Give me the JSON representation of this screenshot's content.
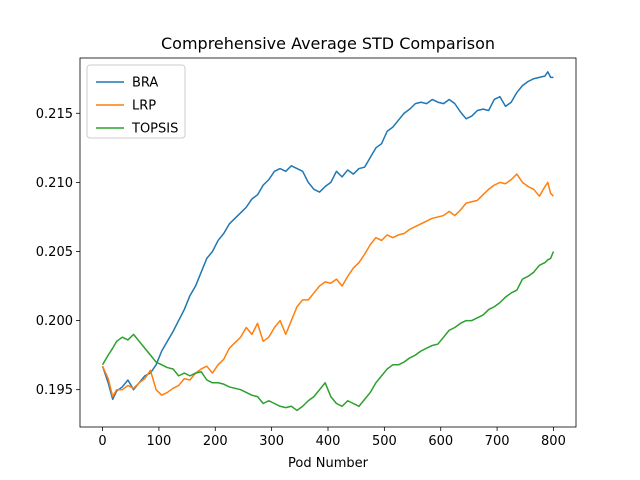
{
  "chart_data": {
    "type": "line",
    "title": "Comprehensive Average STD Comparison",
    "xlabel": "Pod Number",
    "ylabel": "",
    "xlim": [
      -40,
      840
    ],
    "ylim": [
      0.1923,
      0.219
    ],
    "xticks": [
      0,
      100,
      200,
      300,
      400,
      500,
      600,
      700,
      800
    ],
    "xtick_labels": [
      "0",
      "100",
      "200",
      "300",
      "400",
      "500",
      "600",
      "700",
      "800"
    ],
    "yticks": [
      0.195,
      0.2,
      0.205,
      0.21,
      0.215
    ],
    "ytick_labels": [
      "0.195",
      "0.200",
      "0.205",
      "0.210",
      "0.215"
    ],
    "grid": false,
    "legend_position": "top-left",
    "series": [
      {
        "name": "BRA",
        "color": "#1f77b4",
        "x": [
          0,
          10,
          18,
          25,
          35,
          45,
          55,
          65,
          75,
          85,
          95,
          105,
          115,
          125,
          135,
          145,
          155,
          165,
          175,
          185,
          195,
          205,
          215,
          225,
          235,
          245,
          255,
          265,
          275,
          285,
          295,
          305,
          315,
          325,
          335,
          345,
          355,
          365,
          375,
          385,
          395,
          405,
          415,
          425,
          435,
          445,
          455,
          465,
          475,
          485,
          495,
          505,
          515,
          525,
          535,
          545,
          555,
          565,
          575,
          585,
          595,
          605,
          615,
          625,
          635,
          645,
          655,
          665,
          675,
          685,
          695,
          705,
          715,
          725,
          735,
          745,
          755,
          765,
          775,
          785,
          790,
          795,
          800
        ],
        "values": [
          0.1967,
          0.1955,
          0.1943,
          0.1949,
          0.1952,
          0.1957,
          0.195,
          0.1955,
          0.196,
          0.1962,
          0.1968,
          0.1978,
          0.1985,
          0.1992,
          0.2,
          0.2008,
          0.2018,
          0.2025,
          0.2035,
          0.2045,
          0.205,
          0.2058,
          0.2063,
          0.207,
          0.2074,
          0.2078,
          0.2082,
          0.2088,
          0.2091,
          0.2098,
          0.2102,
          0.2108,
          0.211,
          0.2108,
          0.2112,
          0.211,
          0.2108,
          0.21,
          0.2095,
          0.2093,
          0.2097,
          0.21,
          0.2108,
          0.2104,
          0.2109,
          0.2106,
          0.211,
          0.2111,
          0.2118,
          0.2125,
          0.2128,
          0.2137,
          0.214,
          0.2145,
          0.215,
          0.2153,
          0.2157,
          0.2158,
          0.2157,
          0.216,
          0.2158,
          0.2157,
          0.216,
          0.2157,
          0.2151,
          0.2146,
          0.2148,
          0.2152,
          0.2153,
          0.2152,
          0.216,
          0.2162,
          0.2155,
          0.2158,
          0.2165,
          0.217,
          0.2173,
          0.2175,
          0.2176,
          0.2177,
          0.218,
          0.2176,
          0.2176
        ]
      },
      {
        "name": "LRP",
        "color": "#ff7f0e",
        "x": [
          0,
          10,
          18,
          25,
          35,
          45,
          55,
          65,
          75,
          85,
          95,
          105,
          115,
          125,
          135,
          145,
          155,
          165,
          175,
          185,
          195,
          205,
          215,
          225,
          235,
          245,
          255,
          265,
          275,
          285,
          295,
          305,
          315,
          325,
          335,
          345,
          355,
          365,
          375,
          385,
          395,
          405,
          415,
          425,
          435,
          445,
          455,
          465,
          475,
          485,
          495,
          505,
          515,
          525,
          535,
          545,
          555,
          565,
          575,
          585,
          595,
          605,
          615,
          625,
          635,
          645,
          655,
          665,
          675,
          685,
          695,
          705,
          715,
          725,
          735,
          745,
          755,
          765,
          775,
          785,
          790,
          795,
          800
        ],
        "values": [
          0.1967,
          0.1958,
          0.1945,
          0.195,
          0.195,
          0.1953,
          0.1951,
          0.1955,
          0.1958,
          0.1964,
          0.195,
          0.1946,
          0.1948,
          0.1951,
          0.1953,
          0.1958,
          0.1957,
          0.1962,
          0.1965,
          0.1967,
          0.1962,
          0.1968,
          0.1972,
          0.198,
          0.1984,
          0.1988,
          0.1995,
          0.199,
          0.1998,
          0.1985,
          0.1988,
          0.1995,
          0.2,
          0.199,
          0.2,
          0.201,
          0.2015,
          0.2015,
          0.202,
          0.2025,
          0.2028,
          0.2027,
          0.203,
          0.2025,
          0.2032,
          0.2038,
          0.2042,
          0.2048,
          0.2055,
          0.206,
          0.2058,
          0.2062,
          0.206,
          0.2062,
          0.2063,
          0.2066,
          0.2068,
          0.207,
          0.2072,
          0.2074,
          0.2075,
          0.2076,
          0.2079,
          0.2076,
          0.208,
          0.2085,
          0.2086,
          0.2087,
          0.2091,
          0.2095,
          0.2098,
          0.21,
          0.2099,
          0.2102,
          0.2106,
          0.21,
          0.2097,
          0.2095,
          0.209,
          0.2097,
          0.21,
          0.2092,
          0.209
        ]
      },
      {
        "name": "TOPSIS",
        "color": "#2ca02c",
        "x": [
          0,
          10,
          18,
          25,
          35,
          45,
          55,
          65,
          75,
          85,
          95,
          105,
          115,
          125,
          135,
          145,
          155,
          165,
          175,
          185,
          195,
          205,
          215,
          225,
          235,
          245,
          255,
          265,
          275,
          285,
          295,
          305,
          315,
          325,
          335,
          345,
          355,
          365,
          375,
          385,
          395,
          405,
          415,
          425,
          435,
          445,
          455,
          465,
          475,
          485,
          495,
          505,
          515,
          525,
          535,
          545,
          555,
          565,
          575,
          585,
          595,
          605,
          615,
          625,
          635,
          645,
          655,
          665,
          675,
          685,
          695,
          705,
          715,
          725,
          735,
          745,
          755,
          765,
          775,
          785,
          790,
          795,
          800
        ],
        "values": [
          0.1968,
          0.1975,
          0.198,
          0.1985,
          0.1988,
          0.1986,
          0.199,
          0.1985,
          0.198,
          0.1975,
          0.197,
          0.1968,
          0.1966,
          0.1965,
          0.196,
          0.1962,
          0.196,
          0.1962,
          0.1963,
          0.1957,
          0.1955,
          0.1955,
          0.1954,
          0.1952,
          0.1951,
          0.195,
          0.1948,
          0.1946,
          0.1945,
          0.194,
          0.1942,
          0.194,
          0.1938,
          0.1937,
          0.1938,
          0.1935,
          0.1938,
          0.1942,
          0.1945,
          0.195,
          0.1955,
          0.1945,
          0.194,
          0.1938,
          0.1942,
          0.194,
          0.1938,
          0.1943,
          0.1948,
          0.1955,
          0.196,
          0.1965,
          0.1968,
          0.1968,
          0.197,
          0.1973,
          0.1975,
          0.1978,
          0.198,
          0.1982,
          0.1983,
          0.1988,
          0.1993,
          0.1995,
          0.1998,
          0.2,
          0.2,
          0.2002,
          0.2004,
          0.2008,
          0.201,
          0.2013,
          0.2017,
          0.202,
          0.2022,
          0.203,
          0.2032,
          0.2035,
          0.204,
          0.2042,
          0.2044,
          0.2045,
          0.205
        ]
      }
    ]
  }
}
